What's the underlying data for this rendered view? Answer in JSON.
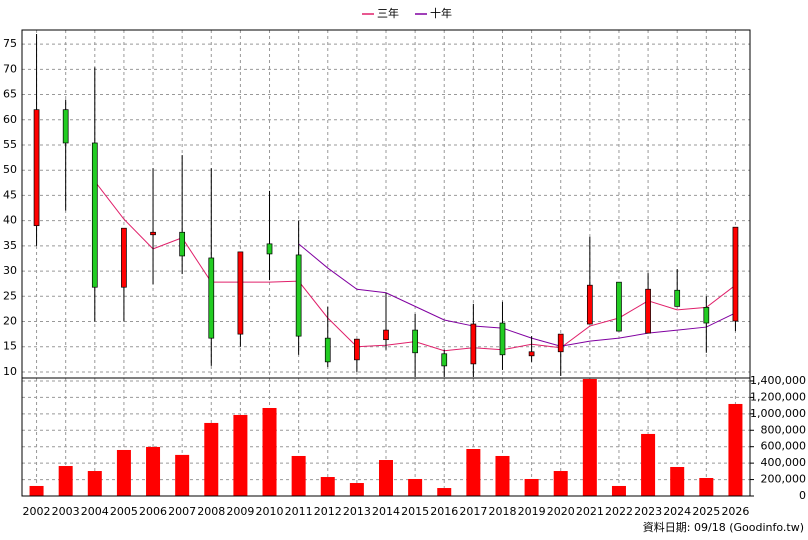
{
  "chart_data": {
    "type": "candlestick",
    "categories": [
      "2002",
      "2003",
      "2004",
      "2005",
      "2006",
      "2007",
      "2008",
      "2009",
      "2010",
      "2011",
      "2012",
      "2013",
      "2014",
      "2015",
      "2016",
      "2017",
      "2018",
      "2019",
      "2020",
      "2021",
      "2022",
      "2023",
      "2024",
      "2025",
      "2026"
    ],
    "open": [
      39,
      62,
      55.4,
      26.8,
      37.2,
      37.7,
      32.6,
      17.5,
      35.4,
      33.2,
      16.7,
      12.4,
      16.4,
      18.3,
      13.6,
      11.6,
      19.7,
      13.2,
      14,
      19.5,
      27.8,
      17.7,
      26.2,
      22.8,
      20.1
    ],
    "high": [
      77,
      64,
      70.4,
      38.5,
      50.4,
      53,
      50.4,
      33.8,
      45.9,
      40,
      22.9,
      16.5,
      25.7,
      21.5,
      14.4,
      23.5,
      23.9,
      17.1,
      17.5,
      36.8,
      27.8,
      29.6,
      30.4,
      25,
      38.7
    ],
    "low": [
      35,
      42,
      20,
      20,
      27.4,
      29.4,
      11.2,
      15,
      28.2,
      13.4,
      11,
      10,
      14.4,
      9,
      9,
      9,
      10.4,
      12,
      9.2,
      19.5,
      18.1,
      17.7,
      23,
      13.8,
      18.1
    ],
    "close": [
      62,
      55.4,
      26.8,
      38.5,
      37.7,
      33,
      16.7,
      33.8,
      33.4,
      17.1,
      12,
      16.5,
      18.3,
      13.8,
      11.2,
      19.5,
      13.4,
      14,
      17.5,
      27.2,
      18.1,
      26.4,
      23,
      19.7,
      38.7
    ],
    "up_color": "#ff0000",
    "down_color": "#22cc22",
    "ylim": [
      8.8,
      77.8
    ],
    "yticks": [
      10,
      15,
      20,
      25,
      30,
      35,
      40,
      45,
      50,
      55,
      60,
      65,
      70,
      75
    ],
    "grid": true,
    "lines": [
      {
        "name": "三年",
        "color": "#e0206a",
        "values": [
          null,
          null,
          47.8,
          40.3,
          34.4,
          36.6,
          27.8,
          27.8,
          27.8,
          28,
          20.7,
          15,
          15.3,
          16,
          14.2,
          14.8,
          14.4,
          15.5,
          14.8,
          19.1,
          20.7,
          24.1,
          22.3,
          22.8,
          27.2
        ]
      },
      {
        "name": "十年",
        "color": "#8000a0",
        "values": [
          null,
          null,
          null,
          null,
          null,
          null,
          null,
          null,
          null,
          35.4,
          30.6,
          26.4,
          25.7,
          23,
          20.3,
          19.1,
          18.7,
          16.7,
          15.1,
          16.1,
          16.7,
          17.7,
          18.3,
          18.9,
          21.7
        ]
      }
    ],
    "volume": {
      "color": "#ff0000",
      "values": [
        122000,
        365000,
        304000,
        560000,
        597000,
        500000,
        889000,
        986000,
        1071000,
        487000,
        231000,
        158000,
        438000,
        207000,
        97000,
        572000,
        487000,
        207000,
        304000,
        1424000,
        122000,
        755000,
        353000,
        219000,
        1120000
      ],
      "ylim": [
        0,
        1436000
      ],
      "yticks": [
        0,
        {
          "value": 200000,
          "label": "200,000"
        },
        {
          "value": 400000,
          "label": "400,000"
        },
        {
          "value": 600000,
          "label": "600,000"
        },
        {
          "value": 800000,
          "label": "800,000"
        },
        {
          "value": 1000000,
          "label": "1,000,000"
        },
        {
          "value": 1200000,
          "label": "1,200,000"
        },
        {
          "value": 1400000,
          "label": "1,400,000"
        }
      ]
    },
    "footer": "資料日期: 09/18 (Goodinfo.tw)"
  }
}
